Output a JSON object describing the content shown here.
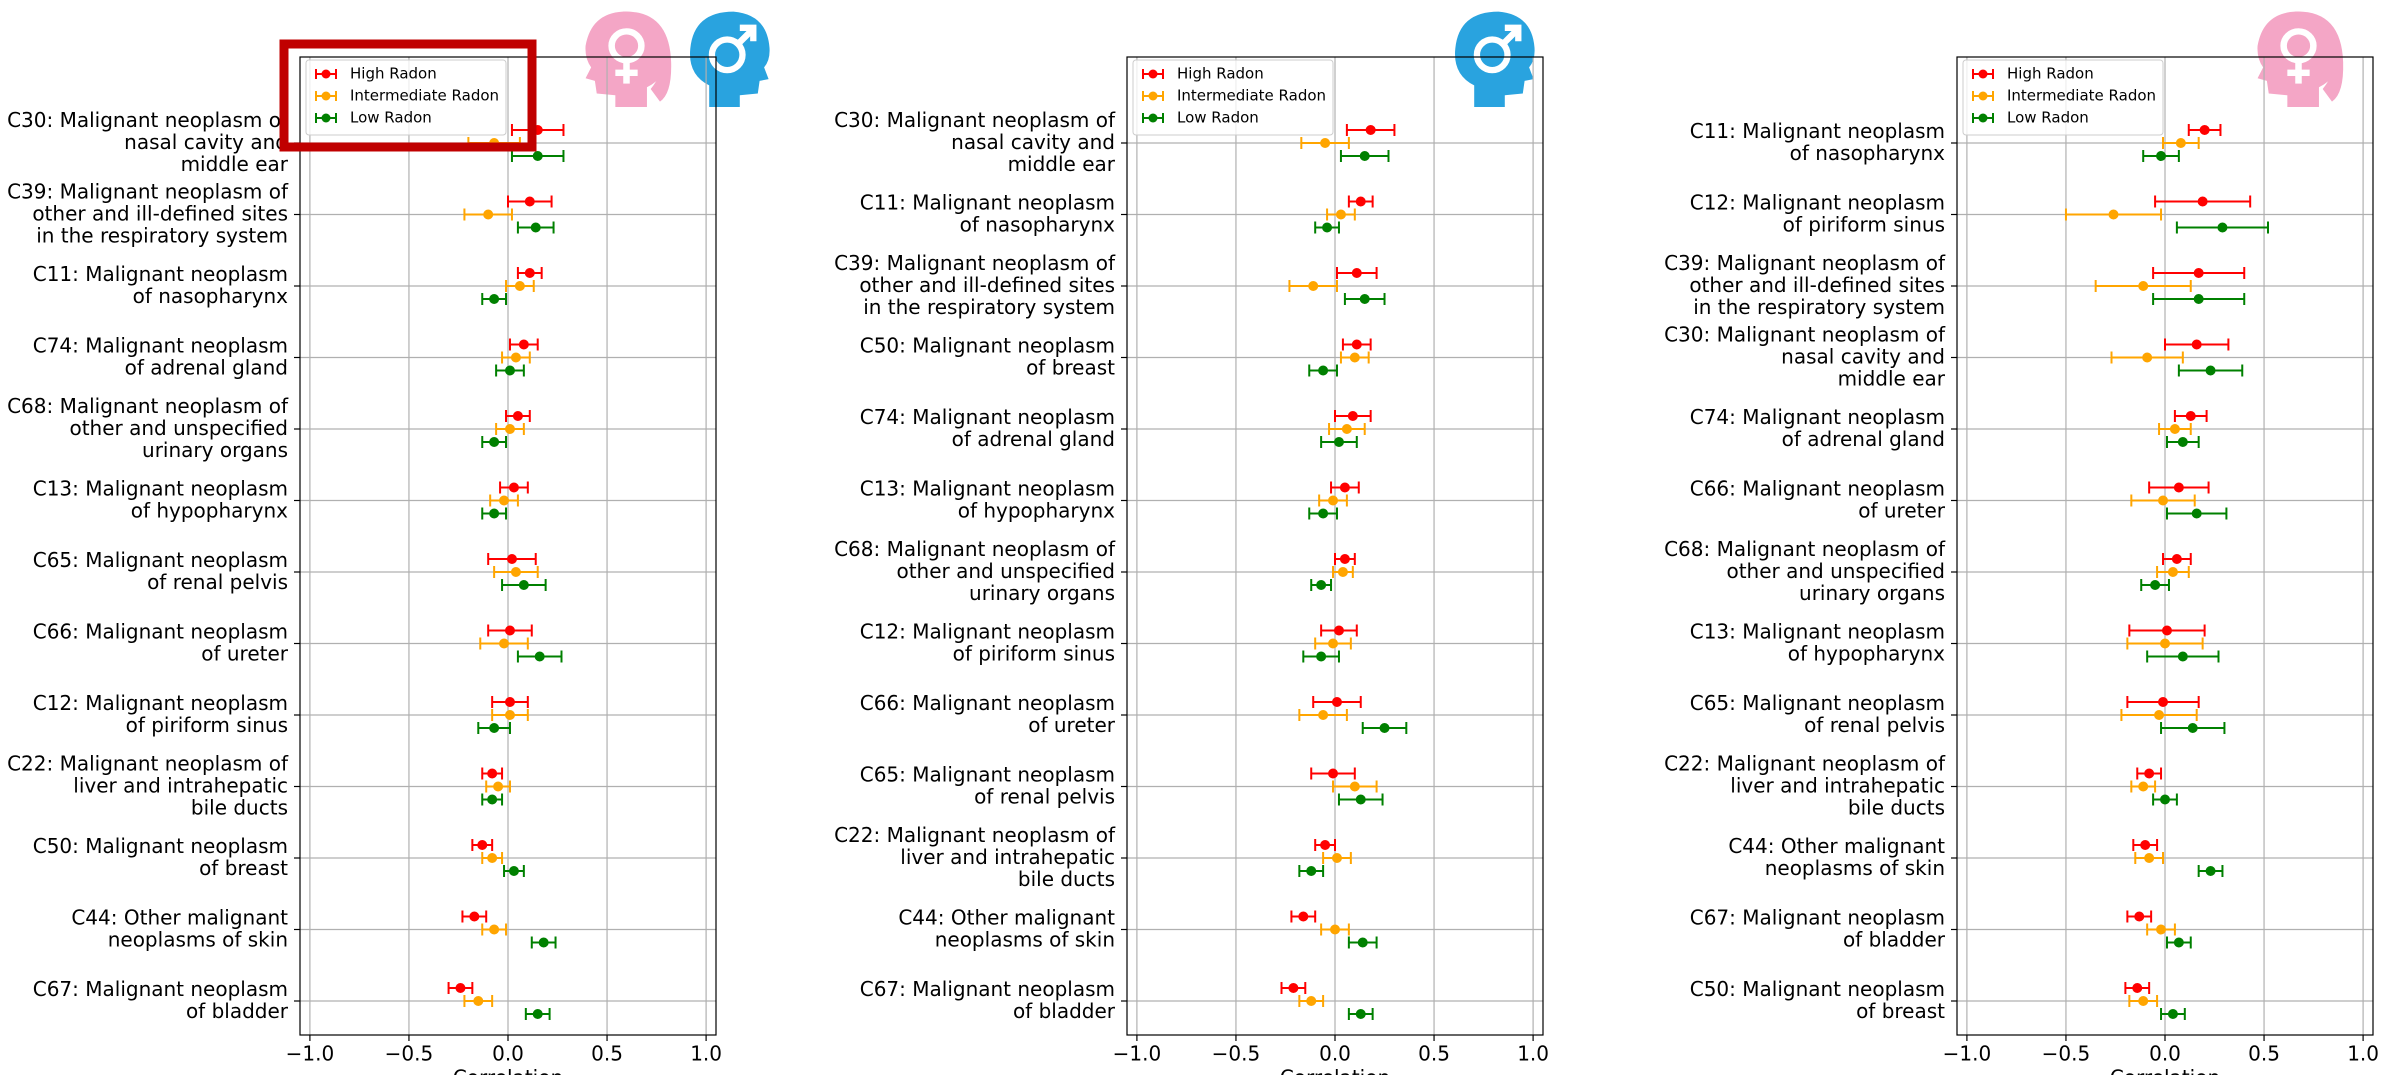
{
  "chart_data": [
    {
      "type": "errorbar",
      "xlabel": "Correlation",
      "xlim": [
        -1.05,
        1.05
      ],
      "xticks": [
        {
          "value": -1.0,
          "label": "−1.0"
        },
        {
          "value": -0.5,
          "label": "−0.5"
        },
        {
          "value": 0.0,
          "label": "0.0"
        },
        {
          "value": 0.5,
          "label": "0.5"
        },
        {
          "value": 1.0,
          "label": "1.0"
        }
      ],
      "grid": true,
      "legend": "upper left",
      "categories": [
        "C30: Malignant neoplasm of\nnasal cavity and\nmiddle ear",
        "C39: Malignant neoplasm of\nother and ill-defined sites\nin the respiratory system",
        "C11: Malignant neoplasm\nof nasopharynx",
        "C74: Malignant neoplasm\nof adrenal gland",
        "C68: Malignant neoplasm of\nother and unspecified\nurinary organs",
        "C13: Malignant neoplasm\nof hypopharynx",
        "C65: Malignant neoplasm\nof renal pelvis",
        "C66: Malignant neoplasm\nof ureter",
        "C12: Malignant neoplasm\nof piriform sinus",
        "C22: Malignant neoplasm of\nliver and intrahepatic\nbile ducts",
        "C50: Malignant neoplasm\nof breast",
        "C44: Other malignant\nneoplasms of skin",
        "C67: Malignant neoplasm\nof bladder"
      ],
      "series": [
        {
          "name": "High Radon",
          "color": "#ff0000",
          "values": [
            0.15,
            0.11,
            0.11,
            0.08,
            0.05,
            0.03,
            0.02,
            0.01,
            0.01,
            -0.08,
            -0.13,
            -0.17,
            -0.24
          ],
          "errors": [
            0.13,
            0.11,
            0.06,
            0.07,
            0.06,
            0.07,
            0.12,
            0.11,
            0.09,
            0.05,
            0.05,
            0.06,
            0.06
          ]
        },
        {
          "name": "Intermediate Radon",
          "color": "#ffa500",
          "values": [
            -0.07,
            -0.1,
            0.06,
            0.04,
            0.01,
            -0.02,
            0.04,
            -0.02,
            0.01,
            -0.05,
            -0.08,
            -0.07,
            -0.15
          ],
          "errors": [
            0.13,
            0.12,
            0.07,
            0.07,
            0.07,
            0.07,
            0.11,
            0.12,
            0.09,
            0.06,
            0.05,
            0.06,
            0.07
          ]
        },
        {
          "name": "Low Radon",
          "color": "#008000",
          "values": [
            0.15,
            0.14,
            -0.07,
            0.01,
            -0.07,
            -0.07,
            0.08,
            0.16,
            -0.07,
            -0.08,
            0.03,
            0.18,
            0.15
          ],
          "errors": [
            0.13,
            0.09,
            0.06,
            0.07,
            0.06,
            0.06,
            0.11,
            0.11,
            0.08,
            0.05,
            0.05,
            0.06,
            0.06
          ]
        }
      ]
    },
    {
      "type": "errorbar",
      "xlabel": "Correlation",
      "xlim": [
        -1.05,
        1.05
      ],
      "xticks": [
        {
          "value": -1.0,
          "label": "−1.0"
        },
        {
          "value": -0.5,
          "label": "−0.5"
        },
        {
          "value": 0.0,
          "label": "0.0"
        },
        {
          "value": 0.5,
          "label": "0.5"
        },
        {
          "value": 1.0,
          "label": "1.0"
        }
      ],
      "grid": true,
      "legend": "upper left",
      "categories": [
        "C30: Malignant neoplasm of\nnasal cavity and\nmiddle ear",
        "C11: Malignant neoplasm\nof nasopharynx",
        "C39: Malignant neoplasm of\nother and ill-defined sites\nin the respiratory system",
        "C50: Malignant neoplasm\nof breast",
        "C74: Malignant neoplasm\nof adrenal gland",
        "C13: Malignant neoplasm\nof hypopharynx",
        "C68: Malignant neoplasm of\nother and unspecified\nurinary organs",
        "C12: Malignant neoplasm\nof piriform sinus",
        "C66: Malignant neoplasm\nof ureter",
        "C65: Malignant neoplasm\nof renal pelvis",
        "C22: Malignant neoplasm of\nliver and intrahepatic\nbile ducts",
        "C44: Other malignant\nneoplasms of skin",
        "C67: Malignant neoplasm\nof bladder"
      ],
      "series": [
        {
          "name": "High Radon",
          "color": "#ff0000",
          "values": [
            0.18,
            0.13,
            0.11,
            0.11,
            0.09,
            0.05,
            0.05,
            0.02,
            0.01,
            -0.01,
            -0.05,
            -0.16,
            -0.21
          ],
          "errors": [
            0.12,
            0.06,
            0.1,
            0.07,
            0.09,
            0.07,
            0.05,
            0.09,
            0.12,
            0.11,
            0.05,
            0.06,
            0.06
          ]
        },
        {
          "name": "Intermediate Radon",
          "color": "#ffa500",
          "values": [
            -0.05,
            0.03,
            -0.11,
            0.1,
            0.06,
            -0.01,
            0.04,
            -0.01,
            -0.06,
            0.1,
            0.01,
            0.0,
            -0.12
          ],
          "errors": [
            0.12,
            0.07,
            0.12,
            0.07,
            0.09,
            0.07,
            0.05,
            0.09,
            0.12,
            0.11,
            0.07,
            0.07,
            0.06
          ]
        },
        {
          "name": "Low Radon",
          "color": "#008000",
          "values": [
            0.15,
            -0.04,
            0.15,
            -0.06,
            0.02,
            -0.06,
            -0.07,
            -0.07,
            0.25,
            0.13,
            -0.12,
            0.14,
            0.13
          ],
          "errors": [
            0.12,
            0.06,
            0.1,
            0.07,
            0.09,
            0.07,
            0.05,
            0.09,
            0.11,
            0.11,
            0.06,
            0.07,
            0.06
          ]
        }
      ]
    },
    {
      "type": "errorbar",
      "xlabel": "Correlation",
      "xlim": [
        -1.05,
        1.05
      ],
      "xticks": [
        {
          "value": -1.0,
          "label": "−1.0"
        },
        {
          "value": -0.5,
          "label": "−0.5"
        },
        {
          "value": 0.0,
          "label": "0.0"
        },
        {
          "value": 0.5,
          "label": "0.5"
        },
        {
          "value": 1.0,
          "label": "1.0"
        }
      ],
      "grid": true,
      "legend": "upper left",
      "categories": [
        "C11: Malignant neoplasm\nof nasopharynx",
        "C12: Malignant neoplasm\nof piriform sinus",
        "C39: Malignant neoplasm of\nother and ill-defined sites\nin the respiratory system",
        "C30: Malignant neoplasm of\nnasal cavity and\nmiddle ear",
        "C74: Malignant neoplasm\nof adrenal gland",
        "C66: Malignant neoplasm\nof ureter",
        "C68: Malignant neoplasm of\nother and unspecified\nurinary organs",
        "C13: Malignant neoplasm\nof hypopharynx",
        "C65: Malignant neoplasm\nof renal pelvis",
        "C22: Malignant neoplasm of\nliver and intrahepatic\nbile ducts",
        "C44: Other malignant\nneoplasms of skin",
        "C67: Malignant neoplasm\nof bladder",
        "C50: Malignant neoplasm\nof breast"
      ],
      "series": [
        {
          "name": "High Radon",
          "color": "#ff0000",
          "values": [
            0.2,
            0.19,
            0.17,
            0.16,
            0.13,
            0.07,
            0.06,
            0.01,
            -0.01,
            -0.08,
            -0.1,
            -0.13,
            -0.14
          ],
          "errors": [
            0.08,
            0.24,
            0.23,
            0.16,
            0.08,
            0.15,
            0.07,
            0.19,
            0.18,
            0.06,
            0.06,
            0.06,
            0.06
          ]
        },
        {
          "name": "Intermediate Radon",
          "color": "#ffa500",
          "values": [
            0.08,
            -0.26,
            -0.11,
            -0.09,
            0.05,
            -0.01,
            0.04,
            0.0,
            -0.03,
            -0.11,
            -0.08,
            -0.02,
            -0.11
          ],
          "errors": [
            0.09,
            0.24,
            0.24,
            0.18,
            0.08,
            0.16,
            0.08,
            0.19,
            0.19,
            0.06,
            0.07,
            0.07,
            0.07
          ]
        },
        {
          "name": "Low Radon",
          "color": "#008000",
          "values": [
            -0.02,
            0.29,
            0.17,
            0.23,
            0.09,
            0.16,
            -0.05,
            0.09,
            0.14,
            0.0,
            0.23,
            0.07,
            0.04
          ],
          "errors": [
            0.09,
            0.23,
            0.23,
            0.16,
            0.08,
            0.15,
            0.07,
            0.18,
            0.16,
            0.06,
            0.06,
            0.06,
            0.06
          ]
        }
      ]
    }
  ]
}
